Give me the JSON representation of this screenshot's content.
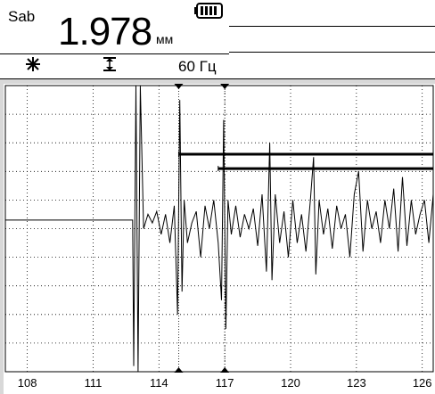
{
  "header": {
    "mode_label": "Sab",
    "reading_value": "1.978",
    "reading_unit": "мм",
    "frequency_label": "60 Гц",
    "icons": {
      "freeze": "snowflake-icon",
      "gate": "gate-icon",
      "battery": "battery-icon"
    }
  },
  "chart_data": {
    "type": "line",
    "x_tick_labels": [
      "108",
      "111",
      "114",
      "117",
      "120",
      "123",
      "126"
    ],
    "xlim": [
      107,
      126.5
    ],
    "ylim": [
      0,
      1
    ],
    "grid": true,
    "cursors": [
      114.9,
      117
    ],
    "gates": [
      {
        "start": 114.9,
        "end": 126.5,
        "level": 0.76
      },
      {
        "start": 116.7,
        "end": 126.5,
        "level": 0.71
      }
    ],
    "series": [
      {
        "x": [
          107,
          108,
          109,
          110,
          111,
          112,
          112.8,
          112.85,
          112.95,
          113.05,
          113.15,
          113.3,
          113.5,
          113.7,
          113.9,
          114.1,
          114.3,
          114.5,
          114.7,
          114.85,
          114.95,
          115.05,
          115.15,
          115.3,
          115.5,
          115.7,
          115.9,
          116.1,
          116.3,
          116.5,
          116.7,
          116.85,
          116.95,
          117.05,
          117.15,
          117.3,
          117.5,
          117.7,
          117.9,
          118.1,
          118.3,
          118.5,
          118.7,
          118.9,
          119.05,
          119.15,
          119.3,
          119.5,
          119.7,
          119.9,
          120.1,
          120.3,
          120.5,
          120.7,
          120.9,
          121.05,
          121.15,
          121.3,
          121.5,
          121.7,
          121.9,
          122.1,
          122.3,
          122.5,
          122.7,
          122.9,
          123.1,
          123.3,
          123.5,
          123.7,
          123.9,
          124.1,
          124.3,
          124.5,
          124.7,
          124.9,
          125.1,
          125.3,
          125.5,
          125.7,
          125.9,
          126.1,
          126.3,
          126.5
        ],
        "y": [
          0.53,
          0.53,
          0.53,
          0.53,
          0.53,
          0.53,
          0.53,
          0.02,
          1.0,
          0.0,
          1.0,
          0.5,
          0.55,
          0.52,
          0.56,
          0.48,
          0.55,
          0.45,
          0.58,
          0.2,
          0.95,
          0.28,
          0.6,
          0.45,
          0.52,
          0.56,
          0.4,
          0.58,
          0.5,
          0.6,
          0.45,
          0.25,
          0.88,
          0.15,
          0.6,
          0.48,
          0.58,
          0.47,
          0.55,
          0.5,
          0.57,
          0.44,
          0.62,
          0.35,
          0.8,
          0.32,
          0.62,
          0.45,
          0.56,
          0.4,
          0.6,
          0.45,
          0.55,
          0.42,
          0.6,
          0.75,
          0.34,
          0.6,
          0.48,
          0.57,
          0.43,
          0.58,
          0.5,
          0.55,
          0.4,
          0.62,
          0.7,
          0.42,
          0.6,
          0.5,
          0.56,
          0.45,
          0.6,
          0.5,
          0.64,
          0.42,
          0.68,
          0.44,
          0.6,
          0.48,
          0.55,
          0.6,
          0.45,
          0.62
        ]
      }
    ]
  }
}
